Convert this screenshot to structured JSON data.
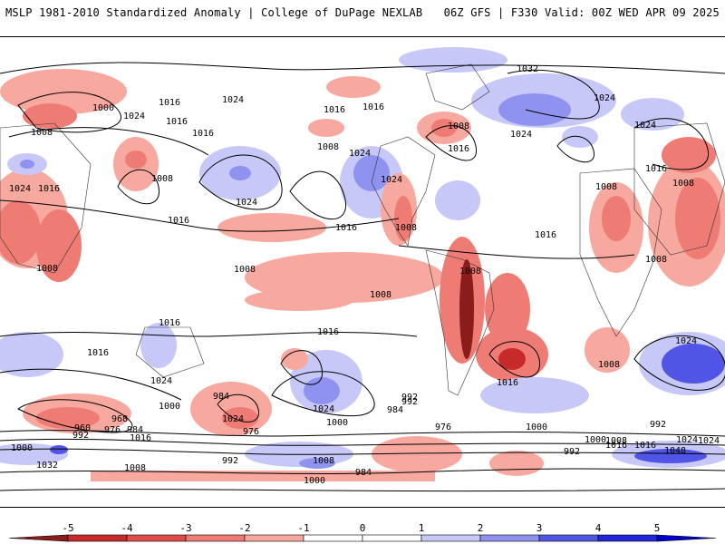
{
  "header": {
    "title": "MSLP 1981-2010 Standardized Anomaly | College of DuPage NEXLAB",
    "run_info": "06Z GFS | F330 Valid: 00Z WED APR 09 2025"
  },
  "colors": {
    "strong_negative": "#8b0000",
    "negative_2": "#e8534f",
    "negative_1": "#f7a79a",
    "neutral": "#ffffff",
    "positive_1": "#c9ccfb",
    "positive_2": "#6b6ff0",
    "strong_positive": "#1010e0"
  },
  "colorbar": {
    "ticks": [
      "-5",
      "-4",
      "-3",
      "-2",
      "-1",
      "0",
      "1",
      "2",
      "3",
      "4",
      "5"
    ],
    "colors": [
      "#8c1b1b",
      "#c62a2a",
      "#de4c4c",
      "#ee7b74",
      "#f7a99f",
      "#ffffff",
      "#ffffff",
      "#c7c8f7",
      "#8f93ef",
      "#5155e6",
      "#2126d6",
      "#0000c8"
    ]
  },
  "isobar_labels": [
    "1032",
    "1024",
    "1016",
    "1024",
    "1016",
    "1000",
    "1008",
    "1024",
    "1016",
    "1016",
    "1008",
    "1016",
    "1024",
    "1008",
    "1024",
    "1016",
    "1008",
    "1024",
    "1016",
    "1008",
    "1024",
    "1008",
    "1024",
    "1024",
    "1008",
    "1008",
    "1008",
    "1008",
    "1008",
    "1016",
    "1016",
    "1016",
    "1016",
    "1016",
    "1008",
    "1008",
    "1016",
    "1016",
    "1024",
    "1024",
    "1016",
    "1024",
    "1000",
    "1000",
    "992",
    "984",
    "976",
    "968",
    "960",
    "976",
    "984",
    "992",
    "1000",
    "1016",
    "1032",
    "1008",
    "984",
    "976",
    "1024",
    "1000",
    "992",
    "992",
    "1000",
    "1024",
    "1016",
    "1048",
    "1024",
    "992",
    "1008",
    "984",
    "1000",
    "992",
    "1008",
    "1016"
  ]
}
